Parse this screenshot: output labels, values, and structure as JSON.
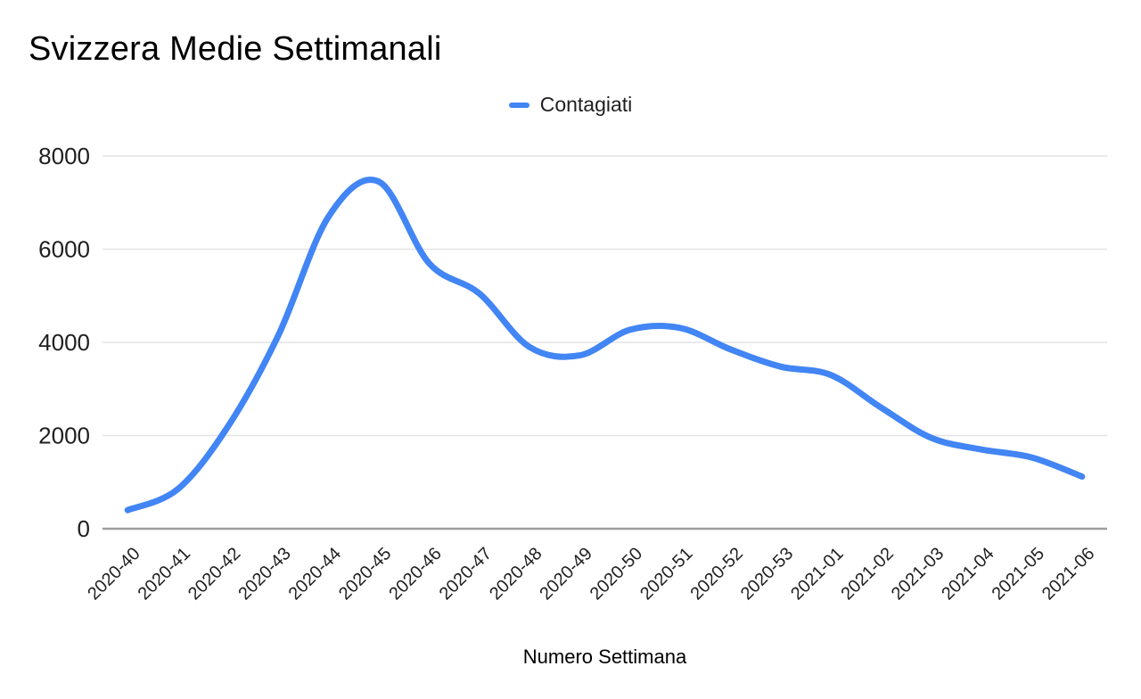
{
  "header": {
    "title": "Svizzera Medie Settimanali"
  },
  "legend": {
    "label": "Contagiati"
  },
  "axes": {
    "x_title": "Numero Settimana"
  },
  "colors": {
    "line": "#4285f4",
    "grid": "#e4e4e4",
    "axis_line": "#9e9e9e",
    "tick_text": "#1f1f1f"
  },
  "chart_data": {
    "type": "line",
    "title": "Svizzera Medie Settimanali",
    "xlabel": "Numero Settimana",
    "ylabel": "",
    "legend_entries": [
      "Contagiati"
    ],
    "legend_position": "top-center",
    "grid": true,
    "smooth": true,
    "ylim": [
      0,
      8000
    ],
    "yticks": [
      0,
      2000,
      4000,
      6000,
      8000
    ],
    "categories": [
      "2020-40",
      "2020-41",
      "2020-42",
      "2020-43",
      "2020-44",
      "2020-45",
      "2020-46",
      "2020-47",
      "2020-48",
      "2020-49",
      "2020-50",
      "2020-51",
      "2020-52",
      "2020-53",
      "2021-01",
      "2021-02",
      "2021-03",
      "2021-04",
      "2021-05",
      "2021-06"
    ],
    "series": [
      {
        "name": "Contagiati",
        "color": "#4285f4",
        "values": [
          400,
          850,
          2200,
          4150,
          6700,
          7450,
          5700,
          5050,
          3900,
          3720,
          4270,
          4310,
          3850,
          3480,
          3300,
          2600,
          1950,
          1700,
          1530,
          1120
        ]
      }
    ]
  }
}
